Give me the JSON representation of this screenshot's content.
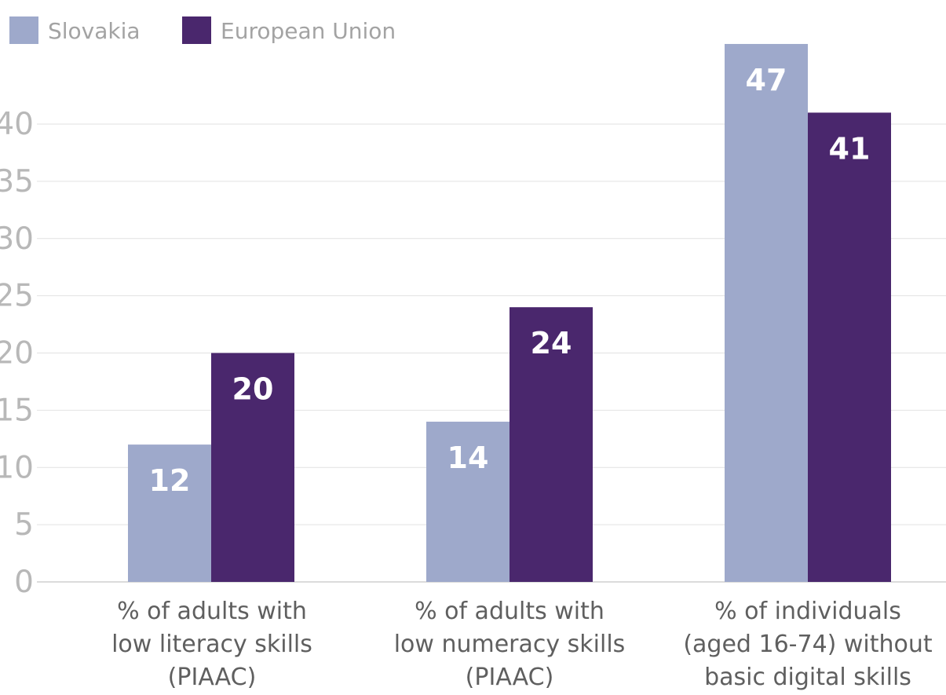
{
  "chart_data": {
    "type": "bar",
    "categories": [
      [
        "% of adults with",
        "low literacy skills",
        "(PIAAC)"
      ],
      [
        "% of adults with",
        "low numeracy skills",
        "(PIAAC)"
      ],
      [
        "% of individuals",
        "(aged 16-74) without",
        "basic digital skills"
      ]
    ],
    "series": [
      {
        "name": "Slovakia",
        "values": [
          12,
          14,
          47
        ],
        "value_labels": [
          "12",
          "14",
          "47"
        ],
        "color": "#9ea9cb"
      },
      {
        "name": "European Union",
        "values": [
          20,
          24,
          41
        ],
        "value_labels": [
          "20",
          "24",
          "41"
        ],
        "color": "#4a276d"
      }
    ],
    "title": "",
    "xlabel": "",
    "ylabel": "",
    "ylim": [
      0,
      45
    ],
    "yticks": [
      0,
      5,
      10,
      15,
      20,
      25,
      30,
      35,
      40
    ],
    "ytick_labels": [
      "0",
      "5",
      "10",
      "15",
      "20",
      "25",
      "30",
      "35",
      "40"
    ],
    "grid": true,
    "legend_position": "top-left"
  }
}
